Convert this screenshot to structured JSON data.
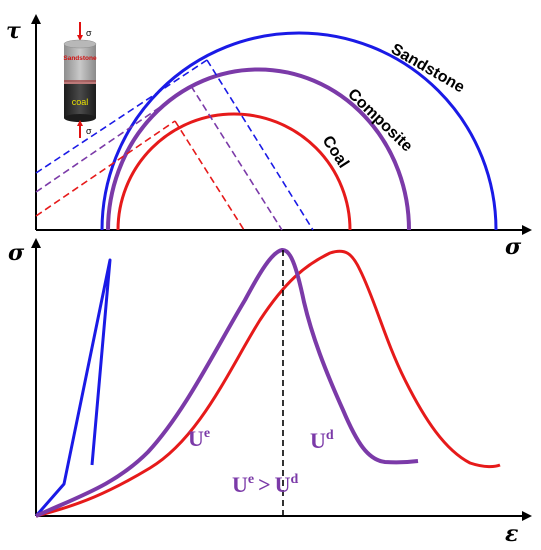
{
  "axes": {
    "tau": "τ",
    "sigma_top": "σ",
    "sigma_left": "σ",
    "epsilon": "ε"
  },
  "circles": {
    "sandstone": "Sandstone",
    "composite": "Composite",
    "coal": "Coal"
  },
  "energy": {
    "ue_base": "U",
    "ue_sup": "e",
    "ud_base": "U",
    "ud_sup": "d",
    "compare_left_base": "U",
    "compare_left_sup": "e",
    "compare_op": ">",
    "compare_right_base": "U",
    "compare_right_sup": "d"
  },
  "inset": {
    "sigma_top": "σ",
    "sigma_bottom": "σ",
    "upper_label": "Sandstone",
    "lower_label": "coal"
  },
  "colors": {
    "sandstone": "#1a1ae6",
    "composite": "#7b3aa8",
    "coal": "#e61a1a"
  }
}
